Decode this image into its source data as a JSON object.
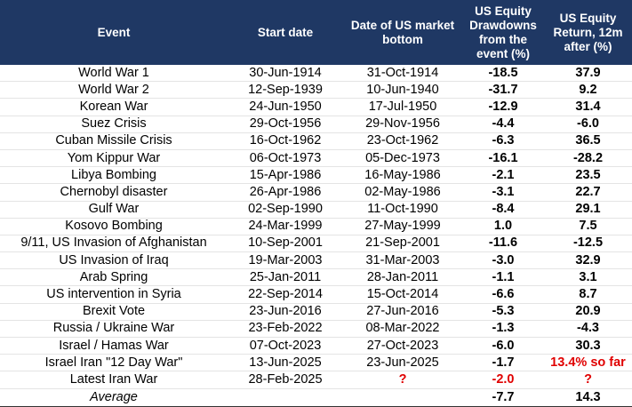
{
  "table": {
    "header": [
      "Event",
      "Start date",
      "Date of US market bottom",
      "US Equity Drawdowns from the event (%)",
      "US Equity Return, 12m after (%)"
    ],
    "rows": [
      [
        "World War 1",
        "30-Jun-1914",
        "31-Oct-1914",
        "-18.5",
        "37.9"
      ],
      [
        "World War 2",
        "12-Sep-1939",
        "10-Jun-1940",
        "-31.7",
        "9.2"
      ],
      [
        "Korean War",
        "24-Jun-1950",
        "17-Jul-1950",
        "-12.9",
        "31.4"
      ],
      [
        "Suez Crisis",
        "29-Oct-1956",
        "29-Nov-1956",
        "-4.4",
        "-6.0"
      ],
      [
        "Cuban Missile Crisis",
        "16-Oct-1962",
        "23-Oct-1962",
        "-6.3",
        "36.5"
      ],
      [
        "Yom Kippur War",
        "06-Oct-1973",
        "05-Dec-1973",
        "-16.1",
        "-28.2"
      ],
      [
        "Libya Bombing",
        "15-Apr-1986",
        "16-May-1986",
        "-2.1",
        "23.5"
      ],
      [
        "Chernobyl disaster",
        "26-Apr-1986",
        "02-May-1986",
        "-3.1",
        "22.7"
      ],
      [
        "Gulf War",
        "02-Sep-1990",
        "11-Oct-1990",
        "-8.4",
        "29.1"
      ],
      [
        "Kosovo Bombing",
        "24-Mar-1999",
        "27-May-1999",
        "1.0",
        "7.5"
      ],
      [
        "9/11, US Invasion of Afghanistan",
        "10-Sep-2001",
        "21-Sep-2001",
        "-11.6",
        "-12.5"
      ],
      [
        "US Invasion of Iraq",
        "19-Mar-2003",
        "31-Mar-2003",
        "-3.0",
        "32.9"
      ],
      [
        "Arab Spring",
        "25-Jan-2011",
        "28-Jan-2011",
        "-1.1",
        "3.1"
      ],
      [
        "US intervention in Syria",
        "22-Sep-2014",
        "15-Oct-2014",
        "-6.6",
        "8.7"
      ],
      [
        "Brexit Vote",
        "23-Jun-2016",
        "27-Jun-2016",
        "-5.3",
        "20.9"
      ],
      [
        "Russia / Ukraine War",
        "23-Feb-2022",
        "08-Mar-2022",
        "-1.3",
        "-4.3"
      ],
      [
        "Israel / Hamas War",
        "07-Oct-2023",
        "27-Oct-2023",
        "-6.0",
        "30.3"
      ],
      [
        "Israel Iran \"12 Day War\"",
        "13-Jun-2025",
        "23-Jun-2025",
        "-1.7",
        "13.4% so far"
      ],
      [
        "Latest Iran War",
        "28-Feb-2025",
        "?",
        "-2.0",
        "?"
      ]
    ],
    "average": [
      "Average",
      "-7.7",
      "14.3"
    ]
  }
}
